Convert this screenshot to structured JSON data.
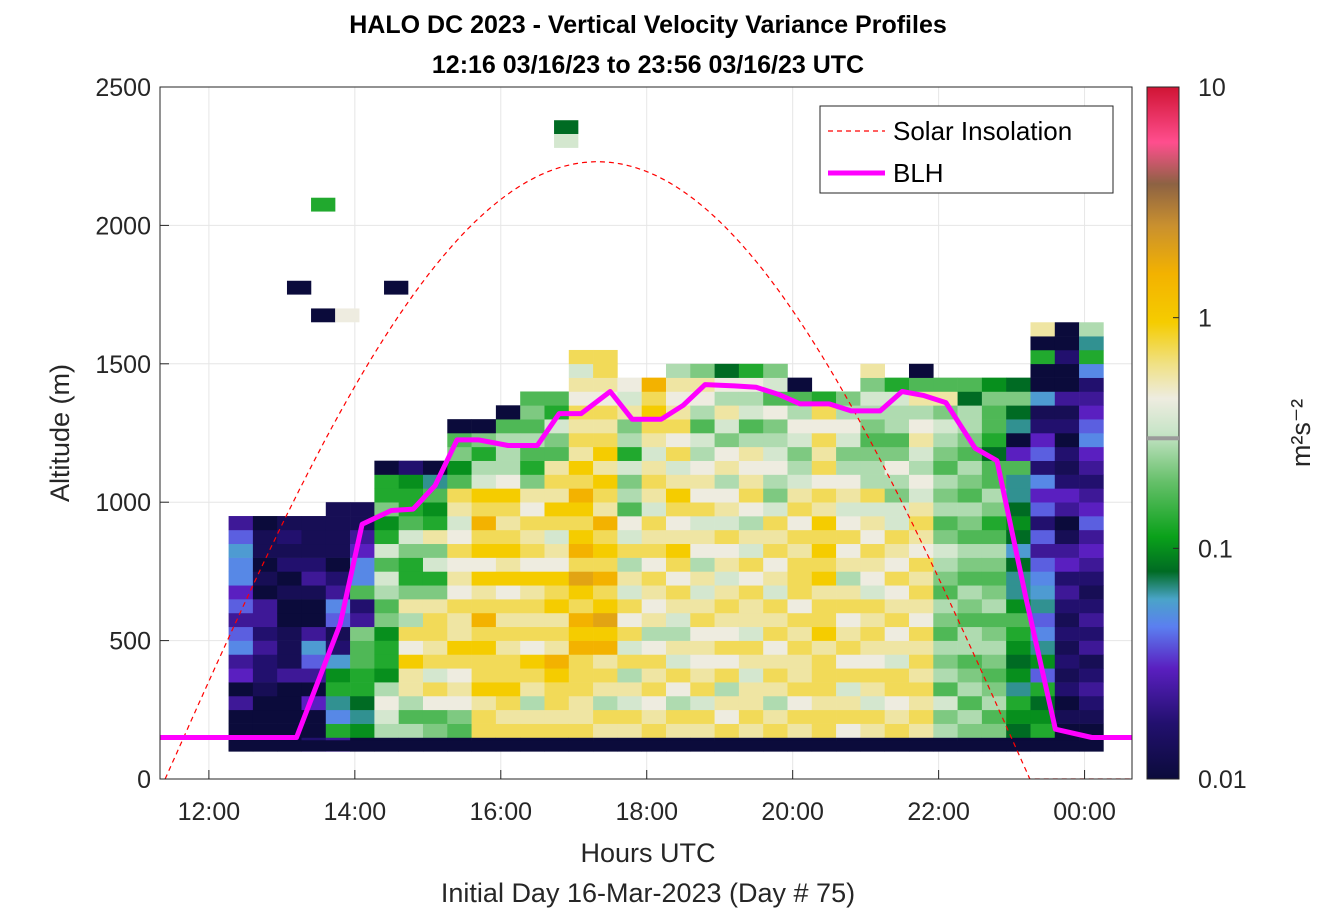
{
  "chart_data": {
    "type": "heatmap",
    "title": "HALO DC 2023 - Vertical Velocity Variance Profiles",
    "subtitle": "12:16 03/16/23 to 23:56 03/16/23  UTC",
    "xlabel": "Hours UTC",
    "xlabel2": "Initial Day 16-Mar-2023 (Day # 75)",
    "ylabel": "Altitude (m)",
    "x_range_hours": [
      11.33,
      24.65
    ],
    "ylim": [
      0,
      2500
    ],
    "x_ticks": [
      {
        "hour": 12,
        "label": "12:00"
      },
      {
        "hour": 14,
        "label": "14:00"
      },
      {
        "hour": 16,
        "label": "16:00"
      },
      {
        "hour": 18,
        "label": "18:00"
      },
      {
        "hour": 20,
        "label": "20:00"
      },
      {
        "hour": 22,
        "label": "22:00"
      },
      {
        "hour": 24,
        "label": "00:00"
      }
    ],
    "y_ticks": [
      0,
      500,
      1000,
      1500,
      2000,
      2500
    ],
    "grid": true,
    "colorbar": {
      "unit": "m²s⁻²",
      "scale": "log",
      "range": [
        0.01,
        10
      ],
      "tick_labels": [
        "0.01",
        "0.1",
        "1",
        "10"
      ]
    },
    "legend": {
      "placement": "top-right",
      "entries": [
        "Solar Insolation",
        "BLH"
      ]
    },
    "colors": {
      "blh": "#ff00ff",
      "solar": "#ff0000"
    },
    "heatmap": {
      "time_start_hour": 12.27,
      "time_step_hours": 0.333,
      "altitude_bin_start_m": 100,
      "altitude_bin_m": 50,
      "log10_variance_columns": [
        [
          -2,
          -2,
          -2,
          -1.7,
          -2,
          -1.6,
          -1.7,
          -1.4,
          -1.5,
          -1.7,
          -1.5,
          -1.6,
          -1.4,
          -1.4,
          -1.3,
          -1.5,
          -1.7
        ],
        [
          -2,
          -2,
          -2,
          -2,
          -1.9,
          -1.8,
          -1.8,
          -1.7,
          -1.8,
          -1.7,
          -1.7,
          -2,
          -1.9,
          -2,
          -1.9,
          -1.9,
          -2
        ],
        [
          -2,
          -2,
          -2,
          -2,
          -2,
          -1.7,
          -1.9,
          -1.9,
          -1.9,
          -2,
          -2,
          -1.9,
          -2,
          -1.8,
          -1.9,
          -1.8,
          -1.9
        ],
        [
          -1.8,
          -2,
          -2,
          -1.6,
          -2,
          -1.7,
          -1.5,
          -1.3,
          -1.7,
          -2,
          -2,
          -1.9,
          -1.7,
          -1.8,
          -1.9,
          -1.9,
          -1.9
        ],
        [
          -1.7,
          -0.9,
          -1.4,
          -1.2,
          -0.9,
          -1,
          -1.3,
          -1.8,
          -1.9,
          -1.5,
          -1.4,
          -1.7,
          -1.8,
          -2,
          -1.9,
          -1.9,
          -1.9,
          -1.9
        ],
        [
          -2,
          -1,
          -1.2,
          -1.1,
          -0.9,
          -0.9,
          -0.8,
          -0.8,
          -0.7,
          -1.7,
          -1.8,
          -0.8,
          -1.4,
          -1.4,
          -1.6,
          -1.7,
          -1.9,
          -1.9
        ],
        [
          -2,
          -0.6,
          -0.5,
          -0.4,
          -0.6,
          -1,
          -0.9,
          -0.9,
          -1,
          -0.7,
          -0.8,
          -0.6,
          -0.5,
          -0.8,
          -0.5,
          -0.9,
          -1,
          -0.7,
          -0.9,
          -0.9,
          -2
        ],
        [
          -2,
          -0.6,
          -0.8,
          -0.6,
          -0.3,
          -0.3,
          -0.1,
          -0.4,
          -0.2,
          -0.6,
          -0.3,
          -0.7,
          -0.9,
          -0.9,
          -0.7,
          -0.5,
          -0.8,
          -0.9,
          -0.9,
          -1,
          -1.8
        ],
        [
          -2,
          -0.7,
          -0.8,
          -0.4,
          -0.2,
          -0.5,
          -0.2,
          -0.3,
          -0.2,
          -0.2,
          -0.3,
          -0.7,
          -0.9,
          -0.5,
          -0.7,
          -0.3,
          -0.9,
          -1,
          -0.8,
          -1.2,
          -2
        ],
        [
          -2,
          -0.8,
          -0.7,
          -0.4,
          -0.3,
          -0.4,
          -0.2,
          -0.1,
          -0.3,
          -0.3,
          -0.2,
          -0.4,
          -0.3,
          -0.4,
          -0.2,
          -0.4,
          -0.5,
          -0.3,
          -0.2,
          -0.8,
          -1,
          -0.7,
          -0.8,
          -2
        ],
        [
          -2,
          -0.2,
          -0.2,
          -0.3,
          -0.1,
          -0.2,
          -0.2,
          -0.1,
          -0.2,
          0.1,
          -0.2,
          -0.3,
          -0.1,
          -0.4,
          -0.1,
          -0.2,
          0.1,
          -0.2,
          -0.1,
          -0.5,
          -0.6,
          -0.9,
          -0.7,
          -2
        ],
        [
          -2,
          -0.2,
          -0.3,
          -0.2,
          -0.1,
          -0.2,
          -0.2,
          -0.3,
          -0.2,
          -0.3,
          -0.2,
          -0.4,
          -0.1,
          -0.3,
          -0.1,
          -0.2,
          -0.3,
          -0.2,
          -0.1,
          -0.4,
          -0.6,
          -0.6,
          -0.6,
          -0.8,
          -2
        ],
        [
          -2,
          -0.2,
          -0.3,
          -0.6,
          -0.3,
          -0.2,
          -0.1,
          -0.4,
          -0.2,
          -0.3,
          -0.2,
          -0.3,
          -0.1,
          -0.4,
          -0.2,
          -0.3,
          -0.2,
          -0.4,
          -0.3,
          -0.7,
          -0.9,
          -0.8,
          -0.6,
          -0.8,
          -0.7,
          -0.8
        ],
        [
          -2,
          -0.2,
          -0.3,
          -0.2,
          -0.2,
          -0.1,
          0.1,
          -0.3,
          -0.2,
          -0.3,
          -0.1,
          -0.2,
          -0.1,
          -0.4,
          -0.3,
          -0.5,
          -0.2,
          -0.1,
          -0.3,
          -0.2,
          -0.3,
          -0.8,
          -0.7,
          -0.5,
          -0.9,
          -0.8
        ],
        [
          -2,
          -0.2,
          -0.3,
          -0.3,
          -0.2,
          -0.2,
          -0.2,
          0.1,
          -0.1,
          0.1,
          -0.2,
          -0.1,
          0.2,
          -0.2,
          0.1,
          -0.1,
          -0.2,
          -0.1,
          0.1,
          -0.2,
          -0.1,
          -0.3,
          -0.2,
          -0.3,
          -0.2,
          -0.4,
          -0.3,
          -0.5,
          -0.2
        ],
        [
          -2,
          -0.3,
          -0.2,
          -0.6,
          -0.3,
          -0.2,
          -0.3,
          0.1,
          -0.1,
          0.2,
          -0.1,
          -0.2,
          0.1,
          -0.2,
          -0.1,
          -0.2,
          0.1,
          -0.3,
          -0.2,
          -0.1,
          -0.3,
          -0.1,
          -0.2,
          -0.3,
          -0.2,
          -0.4,
          -0.3,
          -0.2,
          -0.2
        ],
        [
          -2,
          -0.3,
          -0.2,
          -0.5,
          -0.3,
          -0.6,
          -0.2,
          -0.5,
          -0.2,
          -0.4,
          -0.2,
          -0.5,
          -0.3,
          -0.6,
          -0.2,
          -0.5,
          -0.4,
          -0.8,
          -0.6,
          -0.7,
          -0.5,
          -0.9,
          -0.6,
          -0.7,
          -0.3,
          -0.5,
          -0.4
        ],
        [
          -2,
          -0.2,
          -0.3,
          -0.4,
          -0.2,
          -0.3,
          -0.2,
          -0.4,
          -0.6,
          -0.3,
          -0.4,
          -0.3,
          -0.2,
          -0.4,
          -0.2,
          -0.3,
          -0.2,
          -0.5,
          -0.3,
          -0.2,
          -0.3,
          -0.5,
          -0.3,
          -0.2,
          -0.1,
          -0.2,
          0.1
        ],
        [
          -2,
          -0.3,
          -0.2,
          -0.6,
          -0.4,
          -0.2,
          -0.5,
          -0.3,
          -0.6,
          -0.5,
          -0.3,
          -0.2,
          -0.4,
          -0.2,
          -0.1,
          -0.3,
          -0.4,
          -0.2,
          -0.1,
          -0.3,
          -0.5,
          -0.2,
          -0.4,
          -0.2,
          -0.3,
          -0.4,
          -0.3,
          -0.6
        ],
        [
          -2,
          -0.3,
          -0.2,
          -0.5,
          -0.2,
          -0.3,
          -0.4,
          -0.3,
          -0.4,
          -0.2,
          -0.3,
          -0.5,
          -0.3,
          -0.6,
          -0.4,
          -0.3,
          -0.5,
          -0.2,
          -0.4,
          -0.3,
          -0.4,
          -0.6,
          -0.5,
          -0.8,
          -0.6,
          -0.4,
          -0.3,
          -0.7
        ],
        [
          -2,
          -0.2,
          -0.4,
          -0.3,
          -0.6,
          -0.2,
          -0.4,
          -0.2,
          -0.4,
          -0.3,
          -0.2,
          -0.3,
          -0.5,
          -0.3,
          -0.4,
          -0.2,
          -0.5,
          -0.3,
          -0.4,
          -0.6,
          -0.3,
          -0.4,
          -0.7,
          -0.5,
          -0.3,
          -0.6,
          -0.4,
          -1.1
        ],
        [
          -2,
          -0.3,
          -0.2,
          -0.3,
          -0.3,
          -0.5,
          -0.3,
          -0.2,
          -0.5,
          -0.3,
          -0.3,
          -0.2,
          -0.4,
          -0.2,
          -0.5,
          -0.3,
          -0.6,
          -0.4,
          -0.2,
          -0.3,
          -0.4,
          -0.3,
          -0.6,
          -0.8,
          -0.5,
          -0.6,
          -0.4,
          -0.9
        ],
        [
          -2,
          -0.2,
          -0.3,
          -0.6,
          -0.3,
          -0.2,
          -0.3,
          -0.4,
          -0.2,
          -0.3,
          -0.2,
          -0.5,
          -0.3,
          -0.4,
          -0.2,
          -0.3,
          -0.2,
          -0.5,
          -0.7,
          -0.6,
          -0.4,
          -0.5,
          -0.6,
          -0.7,
          -0.4,
          -0.8,
          -0.5,
          -0.7
        ],
        [
          -2,
          -0.3,
          -0.2,
          -0.4,
          -0.2,
          -0.3,
          -0.3,
          -0.2,
          -0.3,
          -0.2,
          -0.4,
          -0.2,
          -0.2,
          -0.2,
          -0.3,
          -0.2,
          -0.4,
          -0.2,
          -0.3,
          -0.5,
          -0.6,
          -0.7,
          -0.5,
          -0.4,
          -0.6,
          -0.8,
          -2
        ],
        [
          -2,
          -0.2,
          -0.2,
          -0.3,
          -0.2,
          -0.2,
          -0.2,
          -0.3,
          -0.1,
          -0.2,
          -0.2,
          -0.3,
          -0.1,
          -0.2,
          -0.1,
          -0.2,
          -0.1,
          -0.3,
          -0.2,
          -0.4,
          -0.2,
          -0.3,
          -0.2,
          -0.4,
          -0.2,
          -0.9
        ],
        [
          -2,
          -0.4,
          -0.2,
          -0.3,
          -0.5,
          -0.2,
          -0.4,
          -0.2,
          -0.3,
          -0.4,
          -0.2,
          -0.3,
          -0.6,
          -0.3,
          -0.4,
          -0.2,
          -0.4,
          -0.5,
          -0.3,
          -0.4,
          -0.6,
          -0.7,
          -0.5,
          -0.4,
          -0.6,
          -0.7
        ],
        [
          -2,
          -0.3,
          -0.2,
          -0.5,
          -0.3,
          -0.2,
          -0.4,
          -0.3,
          -0.2,
          -0.3,
          -0.2,
          -0.5,
          -0.4,
          -0.3,
          -0.2,
          -0.4,
          -0.3,
          -0.5,
          -0.2,
          -0.6,
          -0.6,
          -0.7,
          -0.8,
          -0.7,
          -0.6,
          -0.5,
          -0.7,
          -0.3
        ],
        [
          -2,
          -0.2,
          -0.3,
          -0.4,
          -0.2,
          -0.2,
          -0.5,
          -0.3,
          -0.4,
          -0.2,
          -0.3,
          -0.4,
          -0.2,
          -0.4,
          -0.3,
          -0.2,
          -0.5,
          -0.5,
          -0.7,
          -0.6,
          -0.4,
          -0.7,
          -0.8,
          -0.6,
          -0.6,
          -0.5,
          -0.9
        ],
        [
          -2,
          -0.3,
          -0.2,
          -0.3,
          -0.2,
          -0.3,
          -0.2,
          -0.3,
          -0.2,
          -0.4,
          -0.3,
          -0.2,
          -0.3,
          -0.2,
          -0.4,
          -0.3,
          -0.2,
          -0.3,
          -0.5,
          -0.4,
          -0.6,
          -0.5,
          -0.3,
          -0.4,
          -0.6,
          -0.3,
          -0.8,
          -2
        ],
        [
          -2,
          -0.6,
          -0.7,
          -0.5,
          -0.8,
          -0.6,
          -0.7,
          -0.6,
          -0.8,
          -0.7,
          -0.6,
          -0.8,
          -0.7,
          -0.6,
          -0.5,
          -0.7,
          -0.8,
          -0.6,
          -0.7,
          -0.6,
          -0.8,
          -0.7,
          -0.6,
          -0.5,
          -0.7,
          -0.3,
          -0.8
        ],
        [
          -2,
          -0.7,
          -0.6,
          -0.8,
          -0.6,
          -0.7,
          -0.8,
          -0.6,
          -0.6,
          -0.8,
          -0.7,
          -0.6,
          -0.8,
          -0.7,
          -0.6,
          -0.8,
          -0.7,
          -0.6,
          -0.8,
          -0.7,
          -0.6,
          -0.8,
          -0.7,
          -0.6,
          -0.6,
          -1.1,
          -0.8
        ],
        [
          -2,
          -0.7,
          -0.8,
          -0.6,
          -0.7,
          -0.8,
          -0.7,
          -0.6,
          -0.7,
          -0.8,
          -0.6,
          -0.7,
          -0.8,
          -0.7,
          -0.6,
          -0.8,
          -0.9,
          -0.7,
          -0.6,
          -0.8,
          -0.8,
          -1.1,
          -0.9,
          -0.8,
          -0.8,
          -0.7,
          -1
        ],
        [
          -2,
          -1.1,
          -1,
          -0.9,
          -1.2,
          -1,
          -1.1,
          -1,
          -0.9,
          -0.8,
          -1,
          -1.2,
          -1.2,
          -1.1,
          -1.3,
          -1.1,
          -1,
          -1.1,
          -1.2,
          -1.2,
          -0.8,
          -1.6,
          -2,
          -1.2,
          -1.1,
          -0.7,
          -1.1
        ],
        [
          -2,
          -0.9,
          -1,
          -1.1,
          -0.9,
          -1.5,
          -1,
          -1.2,
          -1.4,
          -1.5,
          -1.2,
          -1.3,
          -1.4,
          -1.5,
          -1.7,
          -1.5,
          -1.8,
          -1.5,
          -1.6,
          -1.4,
          -1.8,
          -1.5,
          -1.6,
          -1.8,
          -1.9,
          -1.3,
          -2,
          -2,
          -0.9,
          -2,
          -0.3
        ],
        [
          -2,
          -2,
          -1.9,
          -2,
          -1.8,
          -1.9,
          -1.8,
          -1.9,
          -1.8,
          -1.9,
          -1.8,
          -1.7,
          -1.8,
          -1.6,
          -1.7,
          -1.9,
          -2,
          -1.7,
          -1.6,
          -1.8,
          -1.9,
          -1.8,
          -2,
          -1.8,
          -1.9,
          -1.7,
          -2,
          -2,
          -1.8,
          -2,
          -2
        ],
        [
          -2,
          -2,
          -1.9,
          -1.8,
          -1.7,
          -1.8,
          -1.9,
          -1.7,
          -1.8,
          -1.7,
          -1.8,
          -1.9,
          -1.8,
          -1.7,
          -1.6,
          -1.7,
          -1.5,
          -1.6,
          -1.7,
          -1.8,
          -1.7,
          -1.6,
          -1.4,
          -1.5,
          -1.6,
          -1.7,
          -1.8,
          -1.4,
          -0.9,
          -1.2,
          -0.6
        ]
      ],
      "sparse_cells": [
        {
          "t_hour": 13.4,
          "alt_m": 2050,
          "log10": -0.9
        },
        {
          "t_hour": 13.07,
          "alt_m": 1750,
          "log10": -2
        },
        {
          "t_hour": 14.4,
          "alt_m": 1750,
          "log10": -2
        },
        {
          "t_hour": 13.4,
          "alt_m": 1650,
          "log10": -2
        },
        {
          "t_hour": 13.73,
          "alt_m": 1650,
          "log10": -0.4
        },
        {
          "t_hour": 16.73,
          "alt_m": 2330,
          "log10": -1.1
        },
        {
          "t_hour": 16.73,
          "alt_m": 2280,
          "log10": -0.5
        }
      ]
    },
    "bottom_bin": {
      "alt_m": [
        100,
        140
      ],
      "log10": -2
    },
    "blh_series": {
      "name": "BLH",
      "x_hours": [
        11.33,
        13.2,
        13.8,
        14.1,
        14.5,
        14.8,
        15.1,
        15.4,
        15.7,
        16.1,
        16.5,
        16.8,
        17.1,
        17.5,
        17.8,
        18.2,
        18.5,
        18.8,
        19.2,
        19.5,
        19.8,
        20.1,
        20.5,
        20.8,
        21.2,
        21.5,
        21.8,
        22.1,
        22.5,
        22.8,
        23.2,
        23.6,
        24.1,
        24.65
      ],
      "y_m": [
        150,
        150,
        560,
        920,
        970,
        975,
        1060,
        1225,
        1225,
        1205,
        1205,
        1320,
        1320,
        1400,
        1300,
        1300,
        1350,
        1425,
        1420,
        1415,
        1390,
        1355,
        1355,
        1330,
        1330,
        1400,
        1385,
        1360,
        1195,
        1150,
        650,
        180,
        150,
        150
      ]
    },
    "solar_series": {
      "name": "Solar Insolation",
      "peak_hour": 17.3,
      "peak_alt_m": 2230,
      "zero_start_hour": 11.4,
      "zero_end_hour": 23.25
    }
  }
}
